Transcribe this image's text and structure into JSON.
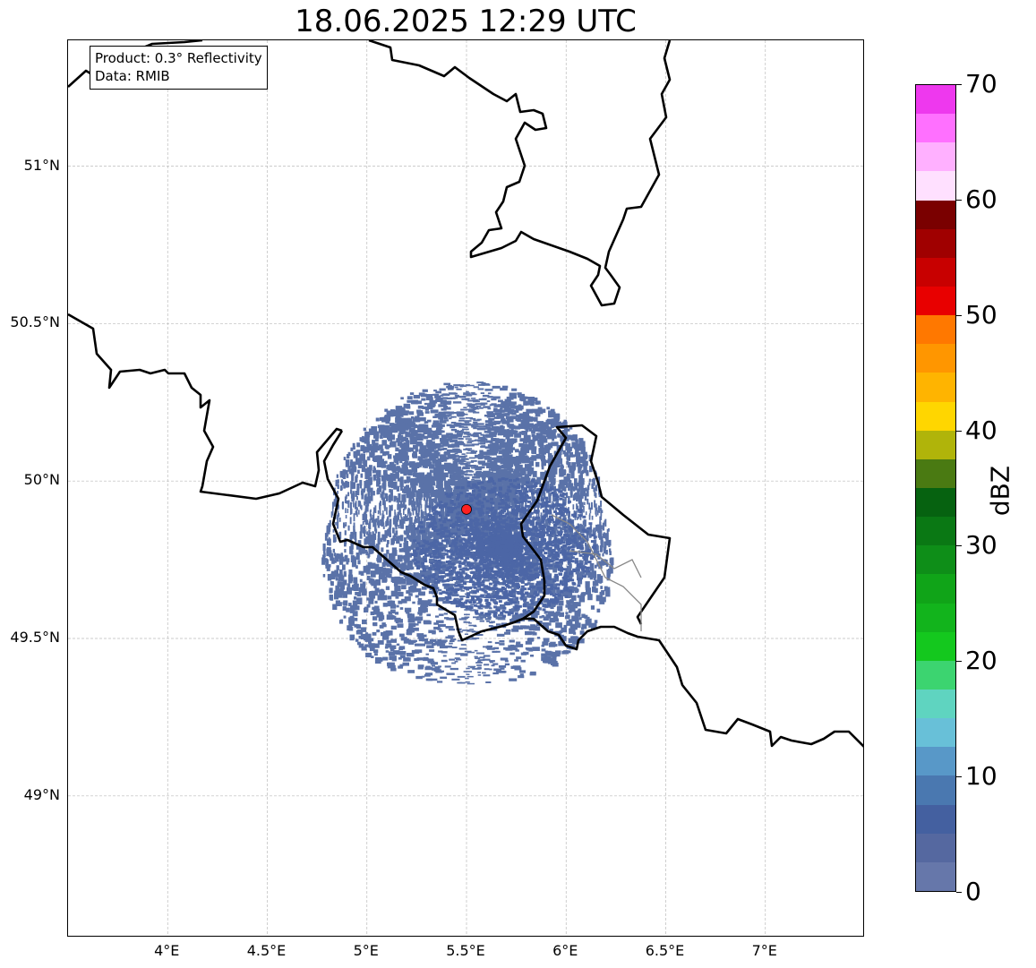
{
  "title": "18.06.2025 12:29 UTC",
  "info": {
    "product": "Product: 0.3° Reflectivity",
    "data": "Data: RMIB"
  },
  "map": {
    "lon_range": [
      3.5,
      7.5
    ],
    "lat_range": [
      48.55,
      51.4
    ],
    "lat_ticks": [
      {
        "value": 49.0,
        "label": "49°N"
      },
      {
        "value": 49.5,
        "label": "49.5°N"
      },
      {
        "value": 50.0,
        "label": "50°N"
      },
      {
        "value": 50.5,
        "label": "50.5°N"
      },
      {
        "value": 51.0,
        "label": "51°N"
      }
    ],
    "lon_ticks": [
      {
        "value": 4.0,
        "label": "4°E"
      },
      {
        "value": 4.5,
        "label": "4.5°E"
      },
      {
        "value": 5.0,
        "label": "5°E"
      },
      {
        "value": 5.5,
        "label": "5.5°E"
      },
      {
        "value": 6.0,
        "label": "6°E"
      },
      {
        "value": 6.5,
        "label": "6.5°E"
      },
      {
        "value": 7.0,
        "label": "7°E"
      }
    ],
    "gridlines": true,
    "radar_site": {
      "lon": 5.5,
      "lat": 49.91,
      "color": "#ff2020"
    },
    "echo_color": "#5a72a8",
    "echo_center": {
      "lon": 5.5,
      "lat": 49.91
    },
    "echo_range_deg": 0.8
  },
  "colorbar": {
    "unit": "dBZ",
    "min": 0,
    "max": 70,
    "step": 2.5,
    "tick_labels": [
      "0",
      "10",
      "20",
      "30",
      "40",
      "50",
      "60",
      "70"
    ],
    "colors": [
      "#6677aa",
      "#5568a0",
      "#4460a0",
      "#4a78b0",
      "#5898c8",
      "#68c0d8",
      "#5fd4c0",
      "#3cd470",
      "#14c81e",
      "#12b41c",
      "#10a418",
      "#0e8e18",
      "#0a7814",
      "#066210",
      "#4a7a12",
      "#b0b40a",
      "#ffd600",
      "#ffb400",
      "#ff9600",
      "#ff7800",
      "#e80000",
      "#c80000",
      "#a00000",
      "#7a0000",
      "#ffe0ff",
      "#ffb0ff",
      "#ff70ff",
      "#ee38ee"
    ]
  }
}
